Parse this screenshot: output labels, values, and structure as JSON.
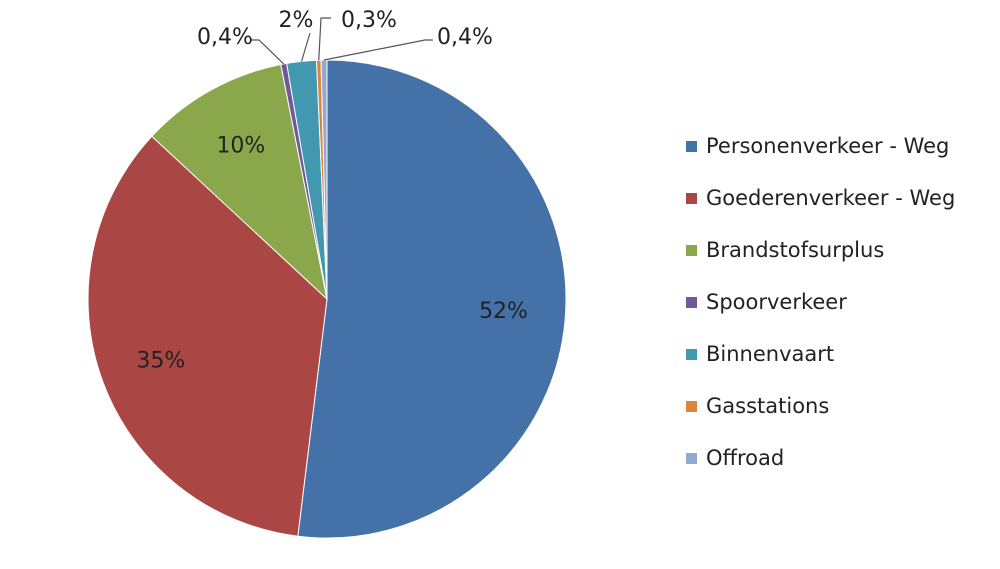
{
  "chart_data": {
    "type": "pie",
    "title": "",
    "categories": [
      "Personenverkeer - Weg",
      "Goederenverkeer - Weg",
      "Brandstofsurplus",
      "Spoorverkeer",
      "Binnenvaart",
      "Gasstations",
      "Offroad"
    ],
    "values": [
      52,
      35,
      10,
      0.4,
      2,
      0.3,
      0.4
    ],
    "labels": [
      "52%",
      "35%",
      "10%",
      "0,4%",
      "2%",
      "0,3%",
      "0,4%"
    ],
    "colors": [
      "#4472a8",
      "#aa4644",
      "#8aa84b",
      "#71589a",
      "#4298ae",
      "#db843d",
      "#93a9cf"
    ],
    "legend_position": "right"
  }
}
